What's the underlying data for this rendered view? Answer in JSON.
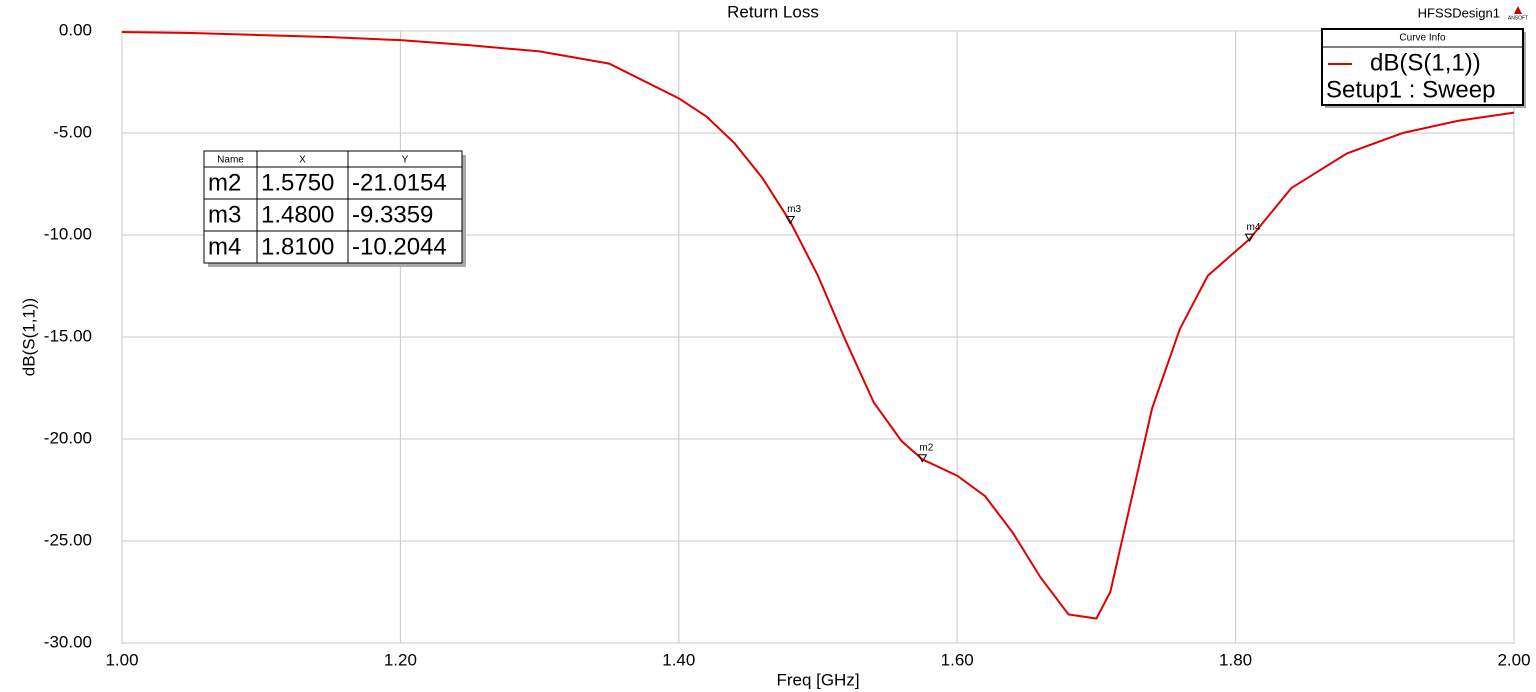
{
  "chart_data": {
    "type": "line",
    "title": "Return Loss",
    "design_name": "HFSSDesign1",
    "logo": "ANSOFT",
    "x_label": "Freq [GHz]",
    "y_label": "dB(S(1,1))",
    "xlim": [
      1.0,
      2.0
    ],
    "ylim": [
      -30,
      0
    ],
    "xticks": [
      {
        "value": 1.0,
        "label": "1.00"
      },
      {
        "value": 1.2,
        "label": "1.20"
      },
      {
        "value": 1.4,
        "label": "1.40"
      },
      {
        "value": 1.6,
        "label": "1.60"
      },
      {
        "value": 1.8,
        "label": "1.80"
      },
      {
        "value": 2.0,
        "label": "2.00"
      }
    ],
    "yticks": [
      {
        "value": 0,
        "label": "0.00"
      },
      {
        "value": -5,
        "label": "-5.00"
      },
      {
        "value": -10,
        "label": "-10.00"
      },
      {
        "value": -15,
        "label": "-15.00"
      },
      {
        "value": -20,
        "label": "-20.00"
      },
      {
        "value": -25,
        "label": "-25.00"
      },
      {
        "value": -30,
        "label": "-30.00"
      }
    ],
    "grid": true,
    "legend_title": "Curve Info",
    "legend_subtitle": "Setup1 : Sweep",
    "x": [
      1.0,
      1.05,
      1.1,
      1.15,
      1.2,
      1.25,
      1.3,
      1.35,
      1.4,
      1.42,
      1.44,
      1.46,
      1.48,
      1.5,
      1.52,
      1.54,
      1.56,
      1.575,
      1.6,
      1.62,
      1.64,
      1.66,
      1.68,
      1.69,
      1.7,
      1.71,
      1.72,
      1.74,
      1.76,
      1.78,
      1.81,
      1.84,
      1.88,
      1.92,
      1.96,
      2.0
    ],
    "series": [
      {
        "name": "dB(S(1,1))",
        "color": "#e00000",
        "values": [
          -0.05,
          -0.1,
          -0.2,
          -0.3,
          -0.45,
          -0.7,
          -1.0,
          -1.6,
          -3.3,
          -4.2,
          -5.5,
          -7.2,
          -9.34,
          -12.0,
          -15.2,
          -18.2,
          -20.1,
          -21.0,
          -21.8,
          -22.8,
          -24.6,
          -26.8,
          -28.6,
          -28.7,
          -28.8,
          -27.5,
          -24.5,
          -18.5,
          -14.6,
          -12.0,
          -10.2,
          -7.7,
          -6.0,
          -5.0,
          -4.4,
          -4.0
        ]
      }
    ],
    "marker_table_header": [
      "Name",
      "X",
      "Y"
    ],
    "markers": [
      {
        "name": "m2",
        "x": {
          "value": 1.575,
          "label": "1.5750"
        },
        "y": {
          "value": -21.0154,
          "label": "-21.0154"
        }
      },
      {
        "name": "m3",
        "x": {
          "value": 1.48,
          "label": "1.4800"
        },
        "y": {
          "value": -9.3359,
          "label": "-9.3359"
        }
      },
      {
        "name": "m4",
        "x": {
          "value": 1.81,
          "label": "1.8100"
        },
        "y": {
          "value": -10.2044,
          "label": "-10.2044"
        }
      }
    ]
  }
}
